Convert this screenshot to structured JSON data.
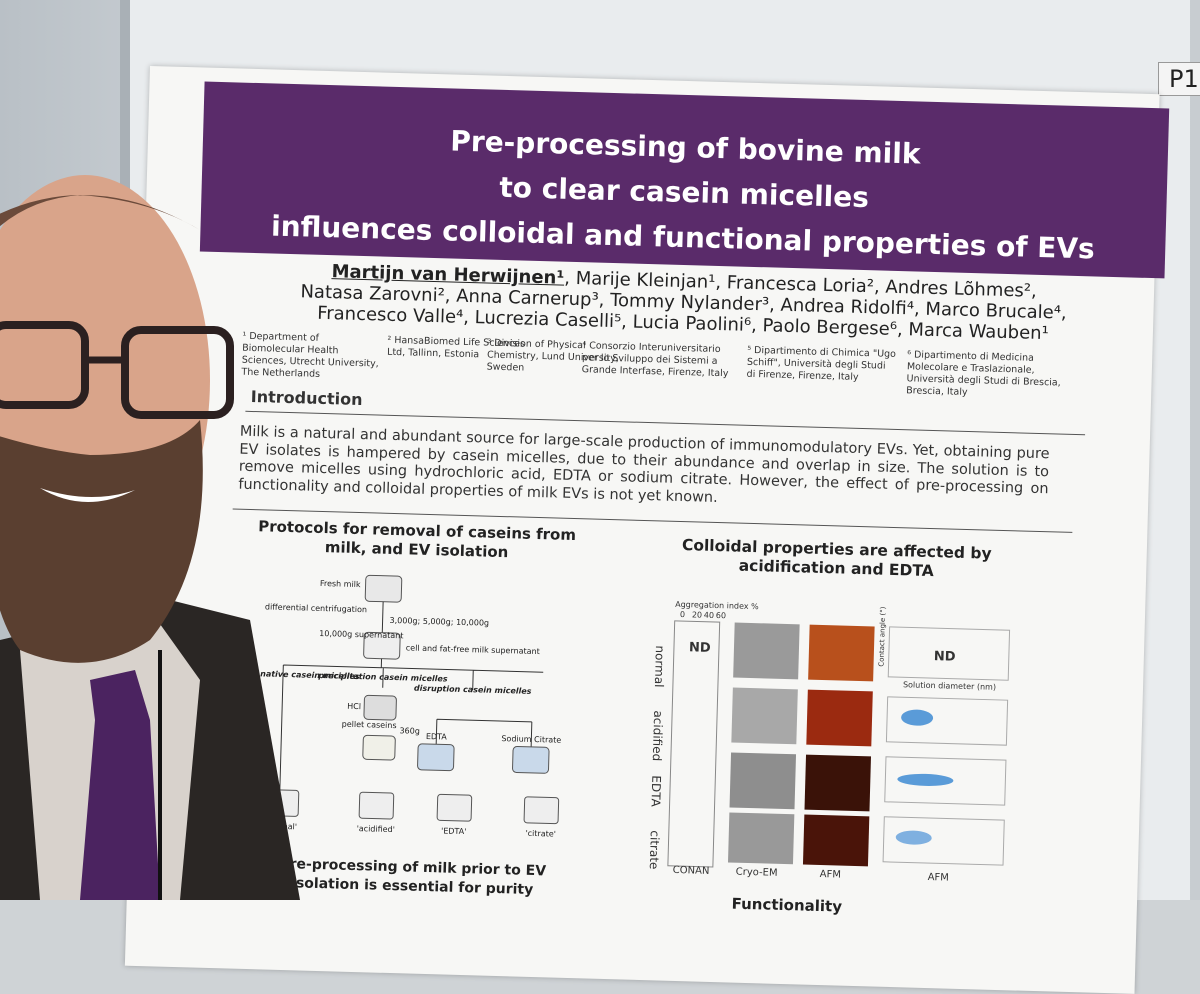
{
  "board_label": "P1",
  "poster": {
    "title": [
      "Pre-processing of bovine milk",
      "to clear casein micelles",
      "influences colloidal and functional properties of EVs"
    ],
    "authors": {
      "first": "Martijn van Herwijnen¹",
      "lines": [
        ", Marije Kleinjan¹, Francesca Loria², Andres Lõhmes²,",
        "Natasa Zarovni², Anna Carnerup³, Tommy Nylander³, Andrea Ridolfi⁴, Marco Brucale⁴,",
        "Francesco Valle⁴, Lucrezia Caselli⁵, Lucia Paolini⁶, Paolo Bergese⁶, Marca Wauben¹"
      ]
    },
    "affiliations": [
      "¹ Department of Biomolecular Health Sciences, Utrecht University, The Netherlands",
      "² HansaBiomed Life Sciences Ltd, Tallinn, Estonia",
      "³ Division of Physical Chemistry, Lund University, Sweden",
      "⁴ Consorzio Interuniversitario per lo Sviluppo dei Sistemi a Grande Interfase, Firenze, Italy",
      "⁵ Dipartimento di Chimica \"Ugo Schiff\", Università degli Studi di Firenze, Firenze, Italy",
      "⁶ Dipartimento di Medicina Molecolare e Traslazionale, Università degli Studi di Brescia, Brescia, Italy"
    ],
    "introduction": {
      "heading": "Introduction",
      "text": "Milk is a natural and abundant source for large-scale production of immunomodulatory EVs. Yet, obtaining pure EV isolates is hampered by casein micelles, due to their abundance and overlap in size. The solution is to remove micelles using hydrochloric acid, EDTA or sodium citrate. However, the effect of pre-processing on functionality and colloidal properties of milk EVs is not yet known."
    },
    "protocols": {
      "heading": [
        "Protocols for removal of caseins from",
        "milk, and EV isolation"
      ],
      "labels": [
        "Fresh milk",
        "differential centrifugation",
        "3,000g; 5,000g; 10,000g",
        "10,000g supernatant",
        "cell and fat-free milk supernatant",
        "untouched, native casein micelles",
        "precipitation casein micelles",
        "disruption casein micelles",
        "HCl",
        "pellet caseins",
        "360g",
        "EDTA",
        "Sodium Citrate",
        "'normal'",
        "'acidified'",
        "'EDTA'",
        "'citrate'"
      ],
      "conclusion": [
        "Pre-processing of milk prior to  EV",
        "isolation is essential for purity"
      ]
    },
    "colloidal": {
      "heading": [
        "Colloidal properties are affected by",
        "acidification and EDTA"
      ],
      "axis_title": "Aggregation index %",
      "axis_ticks": [
        "0",
        "20",
        "40",
        "60"
      ],
      "rows": [
        "normal",
        "acidified",
        "EDTA",
        "citrate"
      ],
      "nd": [
        "ND",
        "ND"
      ],
      "columns": [
        "CONAN",
        "Cryo-EM",
        "AFM"
      ],
      "plot_x_label": "Solution diameter (nm)",
      "plot_y_label": "Contact angle (°)"
    },
    "next_heading": "Functionality"
  }
}
